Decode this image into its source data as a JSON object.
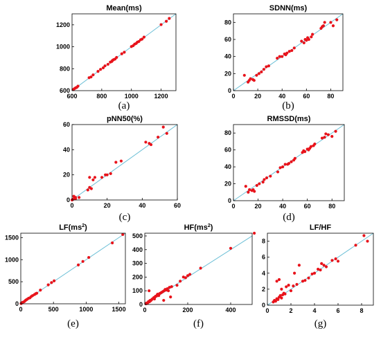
{
  "figure": {
    "chart_data": [
      {
        "type": "scatter",
        "caption": "(a)",
        "title": "Mean(ms)",
        "title_super": "",
        "xlim": [
          600,
          1300
        ],
        "ylim": [
          600,
          1300
        ],
        "xticks": [
          600,
          800,
          1000,
          1200
        ],
        "yticks": [
          600,
          800,
          1000,
          1200
        ],
        "identity_line": true,
        "line_color": "#6bbfd6",
        "point_color": "#e8131b",
        "points": [
          [
            610,
            612
          ],
          [
            618,
            620
          ],
          [
            625,
            626
          ],
          [
            632,
            630
          ],
          [
            640,
            641
          ],
          [
            715,
            718
          ],
          [
            728,
            725
          ],
          [
            742,
            744
          ],
          [
            775,
            776
          ],
          [
            792,
            794
          ],
          [
            810,
            808
          ],
          [
            822,
            826
          ],
          [
            842,
            840
          ],
          [
            858,
            860
          ],
          [
            868,
            866
          ],
          [
            872,
            875
          ],
          [
            880,
            882
          ],
          [
            890,
            888
          ],
          [
            900,
            903
          ],
          [
            935,
            936
          ],
          [
            952,
            950
          ],
          [
            1000,
            1002
          ],
          [
            1012,
            1010
          ],
          [
            1022,
            1024
          ],
          [
            1032,
            1030
          ],
          [
            1040,
            1042
          ],
          [
            1050,
            1048
          ],
          [
            1062,
            1064
          ],
          [
            1072,
            1070
          ],
          [
            1085,
            1088
          ],
          [
            1200,
            1202
          ],
          [
            1235,
            1232
          ],
          [
            1255,
            1258
          ]
        ]
      },
      {
        "type": "scatter",
        "caption": "(b)",
        "title": "SDNN(ms)",
        "title_super": "",
        "xlim": [
          0,
          90
        ],
        "ylim": [
          0,
          90
        ],
        "xticks": [
          0,
          20,
          40,
          60,
          80
        ],
        "yticks": [
          0,
          20,
          40,
          60,
          80
        ],
        "identity_line": true,
        "line_color": "#6bbfd6",
        "point_color": "#e8131b",
        "points": [
          [
            9,
            18
          ],
          [
            12,
            10
          ],
          [
            13,
            12
          ],
          [
            14,
            14
          ],
          [
            16,
            13
          ],
          [
            17,
            12
          ],
          [
            19,
            18
          ],
          [
            21,
            20
          ],
          [
            23,
            22
          ],
          [
            25,
            25
          ],
          [
            27,
            28
          ],
          [
            29,
            29
          ],
          [
            36,
            38
          ],
          [
            38,
            40
          ],
          [
            40,
            40
          ],
          [
            42,
            43
          ],
          [
            43,
            42
          ],
          [
            44,
            44
          ],
          [
            46,
            46
          ],
          [
            48,
            47
          ],
          [
            50,
            50
          ],
          [
            56,
            58
          ],
          [
            58,
            56
          ],
          [
            59,
            60
          ],
          [
            60,
            59
          ],
          [
            61,
            62
          ],
          [
            62,
            60
          ],
          [
            64,
            63
          ],
          [
            65,
            66
          ],
          [
            72,
            73
          ],
          [
            73,
            75
          ],
          [
            74,
            76
          ],
          [
            75,
            80
          ],
          [
            80,
            80
          ],
          [
            82,
            76
          ],
          [
            85,
            83
          ]
        ]
      },
      {
        "type": "scatter",
        "caption": "(c)",
        "title": "pNN50(%)",
        "title_super": "",
        "xlim": [
          0,
          60
        ],
        "ylim": [
          0,
          60
        ],
        "xticks": [
          0,
          20,
          40,
          60
        ],
        "yticks": [
          0,
          20,
          40,
          60
        ],
        "identity_line": true,
        "line_color": "#6bbfd6",
        "point_color": "#e8131b",
        "points": [
          [
            0,
            0
          ],
          [
            0.5,
            0.5
          ],
          [
            1,
            1
          ],
          [
            1,
            3
          ],
          [
            2,
            1
          ],
          [
            2,
            2
          ],
          [
            4,
            2
          ],
          [
            9,
            8
          ],
          [
            10,
            10
          ],
          [
            10,
            18
          ],
          [
            11,
            9
          ],
          [
            12,
            16
          ],
          [
            13,
            18
          ],
          [
            17,
            18
          ],
          [
            19,
            20
          ],
          [
            20,
            20
          ],
          [
            22,
            21
          ],
          [
            25,
            30
          ],
          [
            28,
            31
          ],
          [
            42,
            46
          ],
          [
            44,
            45
          ],
          [
            45,
            44
          ],
          [
            49,
            50
          ],
          [
            52,
            58
          ],
          [
            54,
            53
          ]
        ]
      },
      {
        "type": "scatter",
        "caption": "(d)",
        "title": "RMSSD(ms)",
        "title_super": "",
        "xlim": [
          0,
          90
        ],
        "ylim": [
          0,
          90
        ],
        "xticks": [
          0,
          20,
          40,
          60,
          80
        ],
        "yticks": [
          0,
          20,
          40,
          60,
          80
        ],
        "identity_line": true,
        "line_color": "#6bbfd6",
        "point_color": "#e8131b",
        "points": [
          [
            10,
            17
          ],
          [
            12,
            10
          ],
          [
            13,
            13
          ],
          [
            15,
            12
          ],
          [
            16,
            13
          ],
          [
            17,
            11
          ],
          [
            19,
            18
          ],
          [
            21,
            20
          ],
          [
            24,
            22
          ],
          [
            25,
            25
          ],
          [
            27,
            27
          ],
          [
            30,
            29
          ],
          [
            36,
            34
          ],
          [
            38,
            39
          ],
          [
            40,
            40
          ],
          [
            42,
            43
          ],
          [
            44,
            43
          ],
          [
            45,
            44
          ],
          [
            47,
            46
          ],
          [
            49,
            48
          ],
          [
            50,
            50
          ],
          [
            56,
            57
          ],
          [
            57,
            59
          ],
          [
            58,
            58
          ],
          [
            60,
            61
          ],
          [
            61,
            60
          ],
          [
            62,
            62
          ],
          [
            63,
            64
          ],
          [
            65,
            65
          ],
          [
            66,
            67
          ],
          [
            72,
            74
          ],
          [
            74,
            75
          ],
          [
            75,
            79
          ],
          [
            77,
            78
          ],
          [
            80,
            76
          ],
          [
            83,
            82
          ]
        ]
      },
      {
        "type": "scatter",
        "caption": "(e)",
        "title": "LF(ms",
        "title_super": "2",
        "xlim": [
          0,
          1600
        ],
        "ylim": [
          0,
          1600
        ],
        "xticks": [
          0,
          500,
          1000,
          1500
        ],
        "yticks": [
          0,
          500,
          1000,
          1500
        ],
        "identity_line": true,
        "line_color": "#6bbfd6",
        "point_color": "#e8131b",
        "points": [
          [
            5,
            5
          ],
          [
            15,
            20
          ],
          [
            25,
            30
          ],
          [
            40,
            40
          ],
          [
            55,
            50
          ],
          [
            70,
            75
          ],
          [
            85,
            90
          ],
          [
            100,
            105
          ],
          [
            120,
            125
          ],
          [
            140,
            135
          ],
          [
            160,
            165
          ],
          [
            180,
            185
          ],
          [
            210,
            210
          ],
          [
            230,
            230
          ],
          [
            245,
            240
          ],
          [
            300,
            310
          ],
          [
            420,
            430
          ],
          [
            470,
            480
          ],
          [
            510,
            520
          ],
          [
            880,
            880
          ],
          [
            950,
            960
          ],
          [
            1040,
            1050
          ],
          [
            1400,
            1380
          ],
          [
            1560,
            1570
          ]
        ]
      },
      {
        "type": "scatter",
        "caption": "(f)",
        "title": "HF(ms",
        "title_super": "2",
        "xlim": [
          0,
          500
        ],
        "ylim": [
          0,
          520
        ],
        "xticks": [
          0,
          200,
          400
        ],
        "yticks": [
          0,
          100,
          200,
          300,
          400,
          500
        ],
        "identity_line": true,
        "line_color": "#6bbfd6",
        "point_color": "#e8131b",
        "points": [
          [
            5,
            5
          ],
          [
            8,
            10
          ],
          [
            12,
            8
          ],
          [
            15,
            15
          ],
          [
            18,
            22
          ],
          [
            22,
            20
          ],
          [
            25,
            30
          ],
          [
            20,
            100
          ],
          [
            28,
            28
          ],
          [
            32,
            35
          ],
          [
            35,
            40
          ],
          [
            40,
            45
          ],
          [
            42,
            50
          ],
          [
            45,
            40
          ],
          [
            48,
            55
          ],
          [
            50,
            60
          ],
          [
            55,
            62
          ],
          [
            58,
            70
          ],
          [
            60,
            75
          ],
          [
            65,
            65
          ],
          [
            70,
            80
          ],
          [
            75,
            85
          ],
          [
            80,
            90
          ],
          [
            85,
            95
          ],
          [
            88,
            30
          ],
          [
            90,
            100
          ],
          [
            95,
            110
          ],
          [
            100,
            105
          ],
          [
            105,
            115
          ],
          [
            110,
            100
          ],
          [
            115,
            125
          ],
          [
            120,
            55
          ],
          [
            125,
            130
          ],
          [
            150,
            140
          ],
          [
            165,
            170
          ],
          [
            180,
            200
          ],
          [
            190,
            195
          ],
          [
            200,
            210
          ],
          [
            210,
            220
          ],
          [
            260,
            265
          ],
          [
            400,
            410
          ],
          [
            510,
            520
          ]
        ]
      },
      {
        "type": "scatter",
        "caption": "(g)",
        "title": "LF/HF",
        "title_super": "",
        "xlim": [
          0,
          9
        ],
        "ylim": [
          0,
          9
        ],
        "xticks": [
          0,
          2,
          4,
          6,
          8
        ],
        "yticks": [
          0,
          2,
          4,
          6,
          8
        ],
        "identity_line": true,
        "line_color": "#6bbfd6",
        "point_color": "#e8131b",
        "points": [
          [
            0.5,
            0.4
          ],
          [
            0.6,
            0.6
          ],
          [
            0.7,
            0.5
          ],
          [
            0.8,
            0.8
          ],
          [
            0.9,
            0.7
          ],
          [
            1.0,
            1.0
          ],
          [
            1.1,
            1.2
          ],
          [
            1.2,
            0.9
          ],
          [
            1.3,
            1.3
          ],
          [
            1.4,
            1.5
          ],
          [
            0.8,
            3.0
          ],
          [
            1.0,
            3.2
          ],
          [
            1.2,
            2.0
          ],
          [
            1.5,
            1.4
          ],
          [
            1.6,
            2.3
          ],
          [
            1.8,
            2.5
          ],
          [
            2.0,
            1.8
          ],
          [
            2.2,
            2.4
          ],
          [
            2.3,
            4.0
          ],
          [
            2.5,
            2.6
          ],
          [
            2.7,
            5.0
          ],
          [
            3.0,
            3.0
          ],
          [
            3.2,
            3.1
          ],
          [
            3.5,
            3.4
          ],
          [
            3.8,
            3.9
          ],
          [
            4.0,
            4.0
          ],
          [
            4.3,
            4.5
          ],
          [
            4.5,
            4.4
          ],
          [
            4.6,
            5.2
          ],
          [
            4.8,
            5.0
          ],
          [
            5.0,
            4.8
          ],
          [
            5.5,
            5.6
          ],
          [
            5.8,
            5.8
          ],
          [
            6.0,
            5.5
          ],
          [
            7.5,
            7.5
          ],
          [
            8.2,
            8.7
          ],
          [
            8.5,
            8.0
          ]
        ]
      }
    ]
  }
}
